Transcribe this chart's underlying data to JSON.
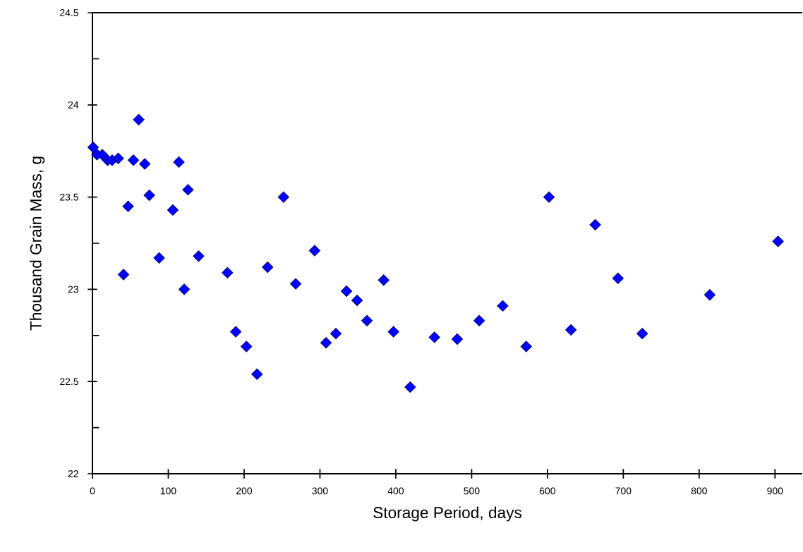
{
  "chart_data": {
    "type": "scatter",
    "xlabel": "Storage Period, days",
    "ylabel": "Thousand Grain Mass, g",
    "marker": "diamond",
    "color": "#0000ff",
    "x": [
      1,
      6,
      13,
      20,
      26,
      34,
      41,
      47,
      54,
      61,
      69,
      75,
      88,
      106,
      114,
      121,
      126,
      140,
      178,
      189,
      203,
      217,
      231,
      252,
      268,
      293,
      308,
      321,
      335,
      349,
      362,
      384,
      397,
      419,
      451,
      481,
      510,
      541,
      572,
      602,
      631,
      663,
      693,
      725,
      814,
      904
    ],
    "values": [
      23.77,
      23.73,
      23.73,
      23.7,
      23.7,
      23.71,
      23.08,
      23.45,
      23.7,
      23.92,
      23.68,
      23.51,
      23.17,
      23.43,
      23.69,
      23.0,
      23.54,
      23.18,
      23.09,
      22.77,
      22.69,
      22.54,
      23.12,
      23.5,
      23.03,
      23.21,
      22.71,
      22.76,
      22.99,
      22.94,
      22.83,
      23.05,
      22.77,
      22.47,
      22.74,
      22.73,
      22.83,
      22.91,
      22.69,
      23.5,
      22.78,
      23.35,
      23.06,
      22.76,
      22.97,
      23.26
    ],
    "xlim": [
      0,
      936
    ],
    "ylim": [
      22,
      24.5
    ],
    "xticks": [
      0,
      100,
      200,
      300,
      400,
      500,
      600,
      700,
      800,
      900
    ],
    "yticks": [
      22,
      {
        "value": 22.25,
        "label": null
      },
      22.5,
      {
        "value": 22.75,
        "label": null
      },
      23,
      {
        "value": 23.25,
        "label": null
      },
      23.5,
      {
        "value": 23.75,
        "label": null
      },
      24,
      {
        "value": 24.25,
        "label": null
      },
      24.5
    ]
  }
}
